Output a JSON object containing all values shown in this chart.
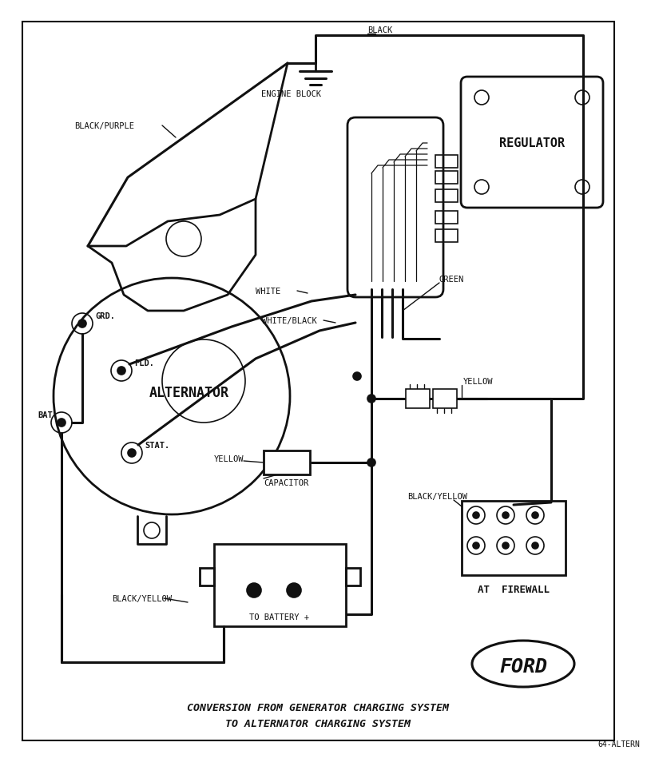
{
  "bg_color": "#ffffff",
  "lc": "#111111",
  "title_line1": "CONVERSION FROM GENERATOR CHARGING SYSTEM",
  "title_line2": "TO ALTERNATOR CHARGING SYSTEM",
  "code": "64-ALTERN",
  "alternator_label": "ALTERNATOR",
  "regulator_label": "REGULATOR",
  "at_firewall_label": "AT  FIREWALL",
  "engine_block_label": "ENGINE BLOCK",
  "to_battery_label": "TO BATTERY +",
  "capacitor_label": "CAPACITOR",
  "ford_label": "FORD",
  "black_label": "BLACK",
  "black_purple_label": "BLACK/PURPLE",
  "white_label": "WHITE",
  "white_black_label": "WHITE/BLACK",
  "green_label": "GREEN",
  "yellow_cap_label": "YELLOW",
  "yellow_top_label": "YELLOW",
  "black_yellow_left_label": "BLACK/YELLOW",
  "black_yellow_right_label": "BLACK/YELLOW",
  "grd_label": "GRD.",
  "fld_label": "FLD.",
  "bat_label": "BAT.",
  "stat_label": "STAT."
}
